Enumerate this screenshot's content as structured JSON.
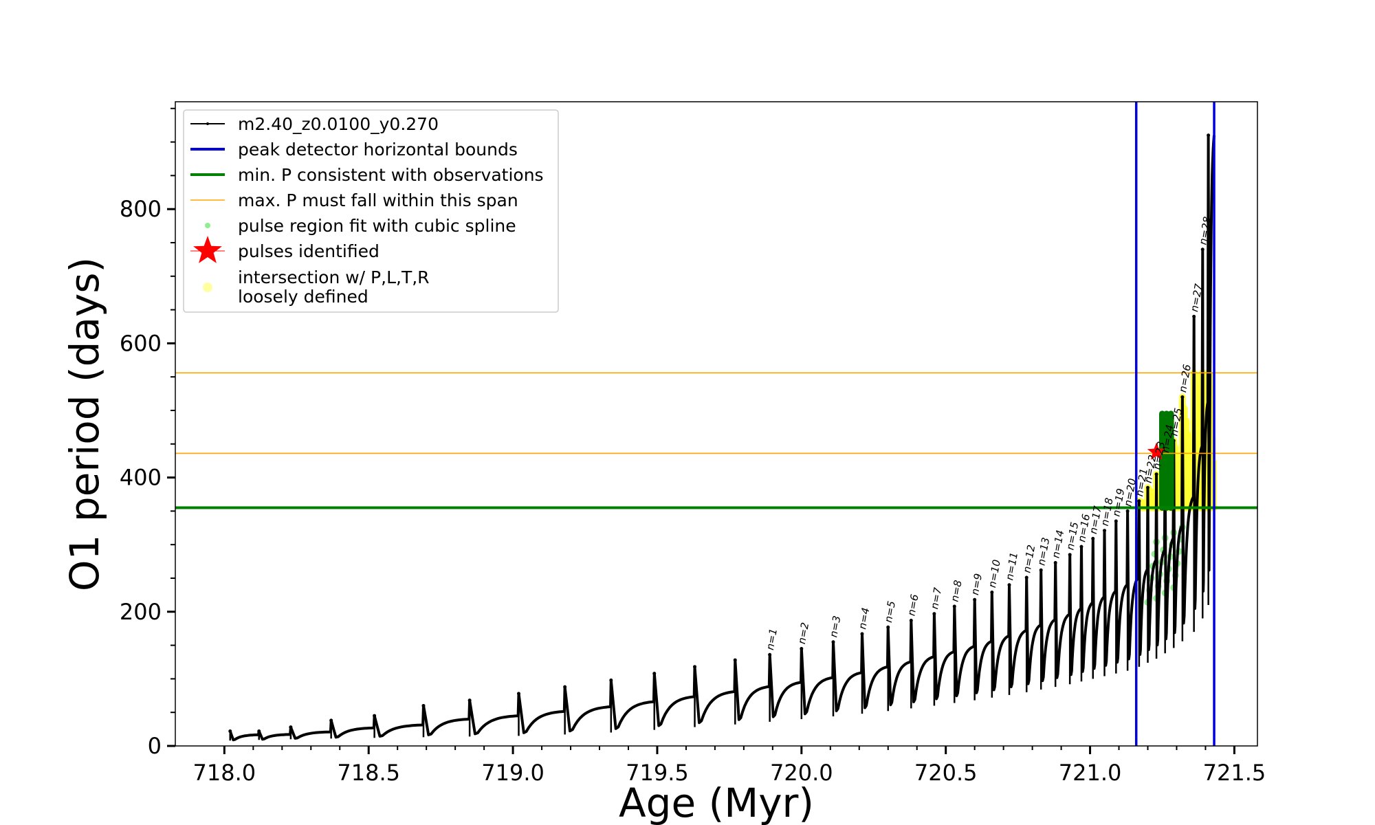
{
  "chart_data": {
    "type": "line",
    "xlabel": "Age (Myr)",
    "ylabel": "O1 period (days)",
    "xlim": [
      717.83,
      721.58
    ],
    "ylim": [
      0,
      960
    ],
    "x_ticks": [
      718.0,
      718.5,
      719.0,
      719.5,
      720.0,
      720.5,
      721.0,
      721.5
    ],
    "x_tick_labels": [
      "718.0",
      "718.5",
      "719.0",
      "719.5",
      "720.0",
      "720.5",
      "721.0",
      "721.5"
    ],
    "y_ticks": [
      0,
      200,
      400,
      600,
      800
    ],
    "y_tick_labels": [
      "0",
      "200",
      "400",
      "600",
      "800"
    ],
    "legend_position": "upper-left",
    "legend": [
      {
        "label": "m2.40_z0.0100_y0.270",
        "marker": "line-dot",
        "color": "#000000"
      },
      {
        "label": "peak detector horizontal bounds",
        "marker": "line",
        "color": "#0000dd"
      },
      {
        "label": "min. P consistent with observations",
        "marker": "line",
        "color": "#008000"
      },
      {
        "label": "max. P must fall within this span",
        "marker": "line-thin",
        "color": "#ffa500"
      },
      {
        "label": "pulse region fit with cubic spline",
        "marker": "dot",
        "color": "#90ee90"
      },
      {
        "label": "pulses identified",
        "marker": "star",
        "color": "#ff0000"
      },
      {
        "label": "intersection w/ P,L,T,R",
        "label_line2": "loosely defined",
        "marker": "dot",
        "color": "#ffffa0"
      }
    ],
    "vertical_lines": [
      {
        "name": "peak detector horizontal bounds",
        "x": 721.16,
        "color": "#0000dd"
      },
      {
        "name": "peak detector horizontal bounds",
        "x": 721.43,
        "color": "#0000dd"
      }
    ],
    "horizontal_lines": [
      {
        "name": "min. P consistent with observations",
        "y": 355,
        "color": "#008000"
      },
      {
        "name": "max. P lower bound",
        "y": 436,
        "color": "#ffa500"
      },
      {
        "name": "max. P upper bound",
        "y": 556,
        "color": "#ffa500"
      }
    ],
    "pulses": [
      {
        "start": 718.02,
        "min": 8,
        "peak": 22
      },
      {
        "start": 718.12,
        "min": 9,
        "peak": 22
      },
      {
        "start": 718.23,
        "min": 10,
        "peak": 28
      },
      {
        "start": 718.37,
        "min": 11,
        "peak": 38
      },
      {
        "start": 718.52,
        "min": 12,
        "peak": 45
      },
      {
        "start": 718.69,
        "min": 13,
        "peak": 60
      },
      {
        "start": 718.85,
        "min": 14,
        "peak": 68
      },
      {
        "start": 719.02,
        "min": 15,
        "peak": 78
      },
      {
        "start": 719.18,
        "min": 17,
        "peak": 88
      },
      {
        "start": 719.34,
        "min": 20,
        "peak": 98
      },
      {
        "start": 719.49,
        "min": 24,
        "peak": 108
      },
      {
        "start": 719.63,
        "min": 28,
        "peak": 118
      },
      {
        "start": 719.77,
        "min": 32,
        "peak": 128
      },
      {
        "start": 719.89,
        "min": 36,
        "peak": 136,
        "label": "n=1"
      },
      {
        "start": 720.0,
        "min": 40,
        "peak": 145,
        "label": "n=2"
      },
      {
        "start": 720.11,
        "min": 44,
        "peak": 155,
        "label": "n=3"
      },
      {
        "start": 720.21,
        "min": 48,
        "peak": 167,
        "label": "n=4"
      },
      {
        "start": 720.3,
        "min": 52,
        "peak": 177,
        "label": "n=5"
      },
      {
        "start": 720.38,
        "min": 56,
        "peak": 187,
        "label": "n=6"
      },
      {
        "start": 720.46,
        "min": 60,
        "peak": 197,
        "label": "n=7"
      },
      {
        "start": 720.53,
        "min": 64,
        "peak": 208,
        "label": "n=8"
      },
      {
        "start": 720.6,
        "min": 68,
        "peak": 218,
        "label": "n=9"
      },
      {
        "start": 720.66,
        "min": 72,
        "peak": 229,
        "label": "n=10"
      },
      {
        "start": 720.72,
        "min": 76,
        "peak": 240,
        "label": "n=11"
      },
      {
        "start": 720.78,
        "min": 80,
        "peak": 251,
        "label": "n=12"
      },
      {
        "start": 720.83,
        "min": 84,
        "peak": 262,
        "label": "n=13"
      },
      {
        "start": 720.88,
        "min": 88,
        "peak": 273,
        "label": "n=14"
      },
      {
        "start": 720.93,
        "min": 92,
        "peak": 285,
        "label": "n=15"
      },
      {
        "start": 720.97,
        "min": 96,
        "peak": 297,
        "label": "n=16"
      },
      {
        "start": 721.01,
        "min": 100,
        "peak": 309,
        "label": "n=17"
      },
      {
        "start": 721.05,
        "min": 104,
        "peak": 321,
        "label": "n=18"
      },
      {
        "start": 721.09,
        "min": 108,
        "peak": 335,
        "label": "n=19"
      },
      {
        "start": 721.13,
        "min": 112,
        "peak": 350,
        "label": "n=20"
      },
      {
        "start": 721.17,
        "min": 118,
        "peak": 365,
        "label": "n=21"
      },
      {
        "start": 721.2,
        "min": 124,
        "peak": 385,
        "label": "n=22"
      },
      {
        "start": 721.23,
        "min": 130,
        "peak": 405,
        "label": "n=23"
      },
      {
        "start": 721.26,
        "min": 138,
        "peak": 430,
        "label": "n=24"
      },
      {
        "start": 721.29,
        "min": 146,
        "peak": 455,
        "label": "n=25"
      },
      {
        "start": 721.32,
        "min": 156,
        "peak": 520,
        "label": "n=26"
      },
      {
        "start": 721.36,
        "min": 170,
        "peak": 640,
        "label": "n=27"
      },
      {
        "start": 721.39,
        "min": 190,
        "peak": 740,
        "label": "n=28"
      },
      {
        "start": 721.41,
        "min": 210,
        "peak": 910
      }
    ],
    "pulses_identified": [
      {
        "x": 721.23,
        "y": 438
      }
    ]
  }
}
